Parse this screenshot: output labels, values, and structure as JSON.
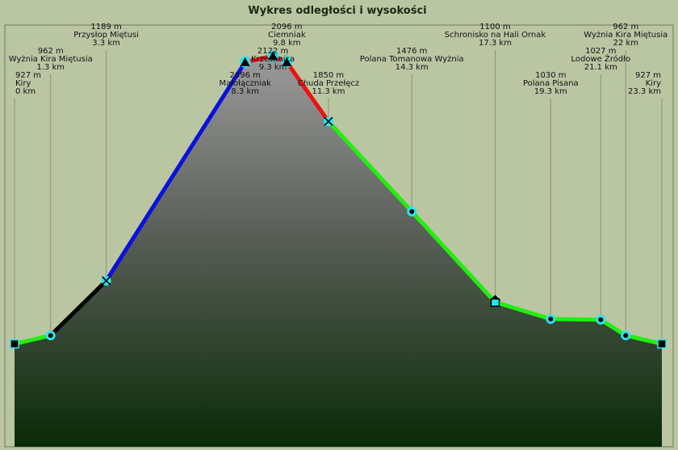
{
  "chart_data": {
    "type": "area",
    "title": "Wykres odległości i wysokości",
    "xlim": [
      0,
      23.3
    ],
    "ylim": [
      500,
      2250
    ],
    "colors": {
      "background": "#bac6a2",
      "frame": "#6d7a58",
      "guide": "#8a9278",
      "fill_top": "#9a9a9a",
      "fill_mid": "#5a5f58",
      "fill_bottom": "#0a2a08",
      "marker": "#29e4f0"
    },
    "points": [
      {
        "name": "Kiry",
        "x": 0,
        "elev": 927,
        "elev_label": "927 m",
        "dist_label": "0 km",
        "symbol": "square"
      },
      {
        "name": "Wyżnia Kira Miętusia",
        "x": 1.3,
        "elev": 962,
        "elev_label": "962 m",
        "dist_label": "1.3 km",
        "symbol": "circle"
      },
      {
        "name": "Przysłop Miętusi",
        "x": 3.3,
        "elev": 1189,
        "elev_label": "1189 m",
        "dist_label": "3.3 km",
        "symbol": "cross"
      },
      {
        "name": "Małołączniak",
        "x": 8.3,
        "elev": 2096,
        "elev_label": "2096 m",
        "dist_label": "8.3 km",
        "symbol": "peak"
      },
      {
        "name": "Krzesanica",
        "x": 9.3,
        "elev": 2122,
        "elev_label": "2122 m",
        "dist_label": "9.3 km",
        "symbol": "peak"
      },
      {
        "name": "Ciemniak",
        "x": 9.8,
        "elev": 2096,
        "elev_label": "2096 m",
        "dist_label": "9.8 km",
        "symbol": "peak"
      },
      {
        "name": "Chuda Przełęcz",
        "x": 11.3,
        "elev": 1850,
        "elev_label": "1850 m",
        "dist_label": "11.3 km",
        "symbol": "cross"
      },
      {
        "name": "Polana Tomanowa Wyżnia",
        "x": 14.3,
        "elev": 1476,
        "elev_label": "1476 m",
        "dist_label": "14.3 km",
        "symbol": "circle"
      },
      {
        "name": "Schronisko na Hali Ornak",
        "x": 17.3,
        "elev": 1100,
        "elev_label": "1100 m",
        "dist_label": "17.3 km",
        "symbol": "hut"
      },
      {
        "name": "Polana Pisana",
        "x": 19.3,
        "elev": 1030,
        "elev_label": "1030 m",
        "dist_label": "19.3 km",
        "symbol": "circle"
      },
      {
        "name": "Lodowe Źródło",
        "x": 21.1,
        "elev": 1027,
        "elev_label": "1027 m",
        "dist_label": "21.1 km",
        "symbol": "circle"
      },
      {
        "name": "Wyżnia Kira Miętusia",
        "x": 22,
        "elev": 962,
        "elev_label": "962 m",
        "dist_label": "22 km",
        "symbol": "circle"
      },
      {
        "name": "Kiry",
        "x": 23.3,
        "elev": 927,
        "elev_label": "927 m",
        "dist_label": "23.3 km",
        "symbol": "square"
      }
    ],
    "segments": [
      {
        "from": 0,
        "to": 1,
        "color": "#22ee11"
      },
      {
        "from": 1,
        "to": 2,
        "color": "#000000"
      },
      {
        "from": 2,
        "to": 3,
        "color": "#0a10e0"
      },
      {
        "from": 3,
        "to": 4,
        "color": "#ee1111"
      },
      {
        "from": 4,
        "to": 5,
        "color": "#ee1111"
      },
      {
        "from": 5,
        "to": 6,
        "color": "#ee1111"
      },
      {
        "from": 6,
        "to": 7,
        "color": "#22ee11"
      },
      {
        "from": 7,
        "to": 8,
        "color": "#22ee11"
      },
      {
        "from": 8,
        "to": 9,
        "color": "#22ee11"
      },
      {
        "from": 9,
        "to": 10,
        "color": "#22ee11"
      },
      {
        "from": 10,
        "to": 11,
        "color": "#22ee11"
      },
      {
        "from": 11,
        "to": 12,
        "color": "#22ee11"
      }
    ]
  }
}
